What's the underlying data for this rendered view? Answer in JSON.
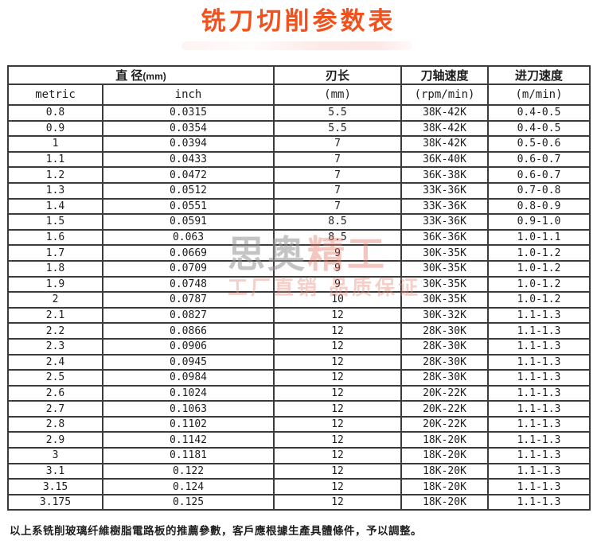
{
  "title": "铣刀切削参数表",
  "title_color": "#f0511d",
  "border_color": "#3b3b3b",
  "table": {
    "header_row1": {
      "diameter": "直 径",
      "diameter_unit": "(mm)",
      "blade_length": "刃长",
      "spindle_speed": "刀轴速度",
      "feed_rate": "进刀速度"
    },
    "header_row2": {
      "metric": "metric",
      "inch": "inch",
      "blade_unit": "(mm)",
      "spindle_unit": "(rpm/min)",
      "feed_unit": "(m/min)"
    },
    "columns": [
      "metric",
      "inch",
      "blade-length",
      "spindle-speed",
      "feed-rate"
    ],
    "rows": [
      [
        "0.8",
        "0.0315",
        "5.5",
        "38K-42K",
        "0.4-0.5"
      ],
      [
        "0.9",
        "0.0354",
        "5.5",
        "38K-42K",
        "0.4-0.5"
      ],
      [
        "1",
        "0.0394",
        "7",
        "38K-42K",
        "0.5-0.6"
      ],
      [
        "1.1",
        "0.0433",
        "7",
        "36K-40K",
        "0.6-0.7"
      ],
      [
        "1.2",
        "0.0472",
        "7",
        "36K-38K",
        "0.6-0.7"
      ],
      [
        "1.3",
        "0.0512",
        "7",
        "33K-36K",
        "0.7-0.8"
      ],
      [
        "1.4",
        "0.0551",
        "7",
        "33K-36K",
        "0.8-0.9"
      ],
      [
        "1.5",
        "0.0591",
        "8.5",
        "33K-36K",
        "0.9-1.0"
      ],
      [
        "1.6",
        "0.063",
        "8.5",
        "36K-36K",
        "1.0-1.1"
      ],
      [
        "1.7",
        "0.0669",
        "9",
        "30K-35K",
        "1.0-1.2"
      ],
      [
        "1.8",
        "0.0709",
        "9",
        "30K-35K",
        "1.0-1.2"
      ],
      [
        "1.9",
        "0.0748",
        "9",
        "30K-35K",
        "1.0-1.2"
      ],
      [
        "2",
        "0.0787",
        "10",
        "30K-35K",
        "1.0-1.2"
      ],
      [
        "2.1",
        "0.0827",
        "12",
        "30K-32K",
        "1.1-1.3"
      ],
      [
        "2.2",
        "0.0866",
        "12",
        "28K-30K",
        "1.1-1.3"
      ],
      [
        "2.3",
        "0.0906",
        "12",
        "28K-30K",
        "1.1-1.3"
      ],
      [
        "2.4",
        "0.0945",
        "12",
        "28K-30K",
        "1.1-1.3"
      ],
      [
        "2.5",
        "0.0984",
        "12",
        "28K-30K",
        "1.1-1.3"
      ],
      [
        "2.6",
        "0.1024",
        "12",
        "20K-22K",
        "1.1-1.3"
      ],
      [
        "2.7",
        "0.1063",
        "12",
        "20K-22K",
        "1.1-1.3"
      ],
      [
        "2.8",
        "0.1102",
        "12",
        "20K-22K",
        "1.1-1.3"
      ],
      [
        "2.9",
        "0.1142",
        "12",
        "18K-20K",
        "1.1-1.3"
      ],
      [
        "3",
        "0.1181",
        "12",
        "18K-20K",
        "1.1-1.3"
      ],
      [
        "3.1",
        "0.122",
        "12",
        "18K-20K",
        "1.1-1.3"
      ],
      [
        "3.15",
        "0.124",
        "12",
        "18K-20K",
        "1.1-1.3"
      ],
      [
        "3.175",
        "0.125",
        "12",
        "18K-20K",
        "1.1-1.3"
      ]
    ]
  },
  "watermark": {
    "line1_gray": "思奥",
    "line1_red": "精工",
    "line2": "工厂直销 品质保证"
  },
  "footnote": "以上系铣削玻璃纤維樹脂電路板的推薦參數，客戶應根據生產具體條件，予以調整。"
}
